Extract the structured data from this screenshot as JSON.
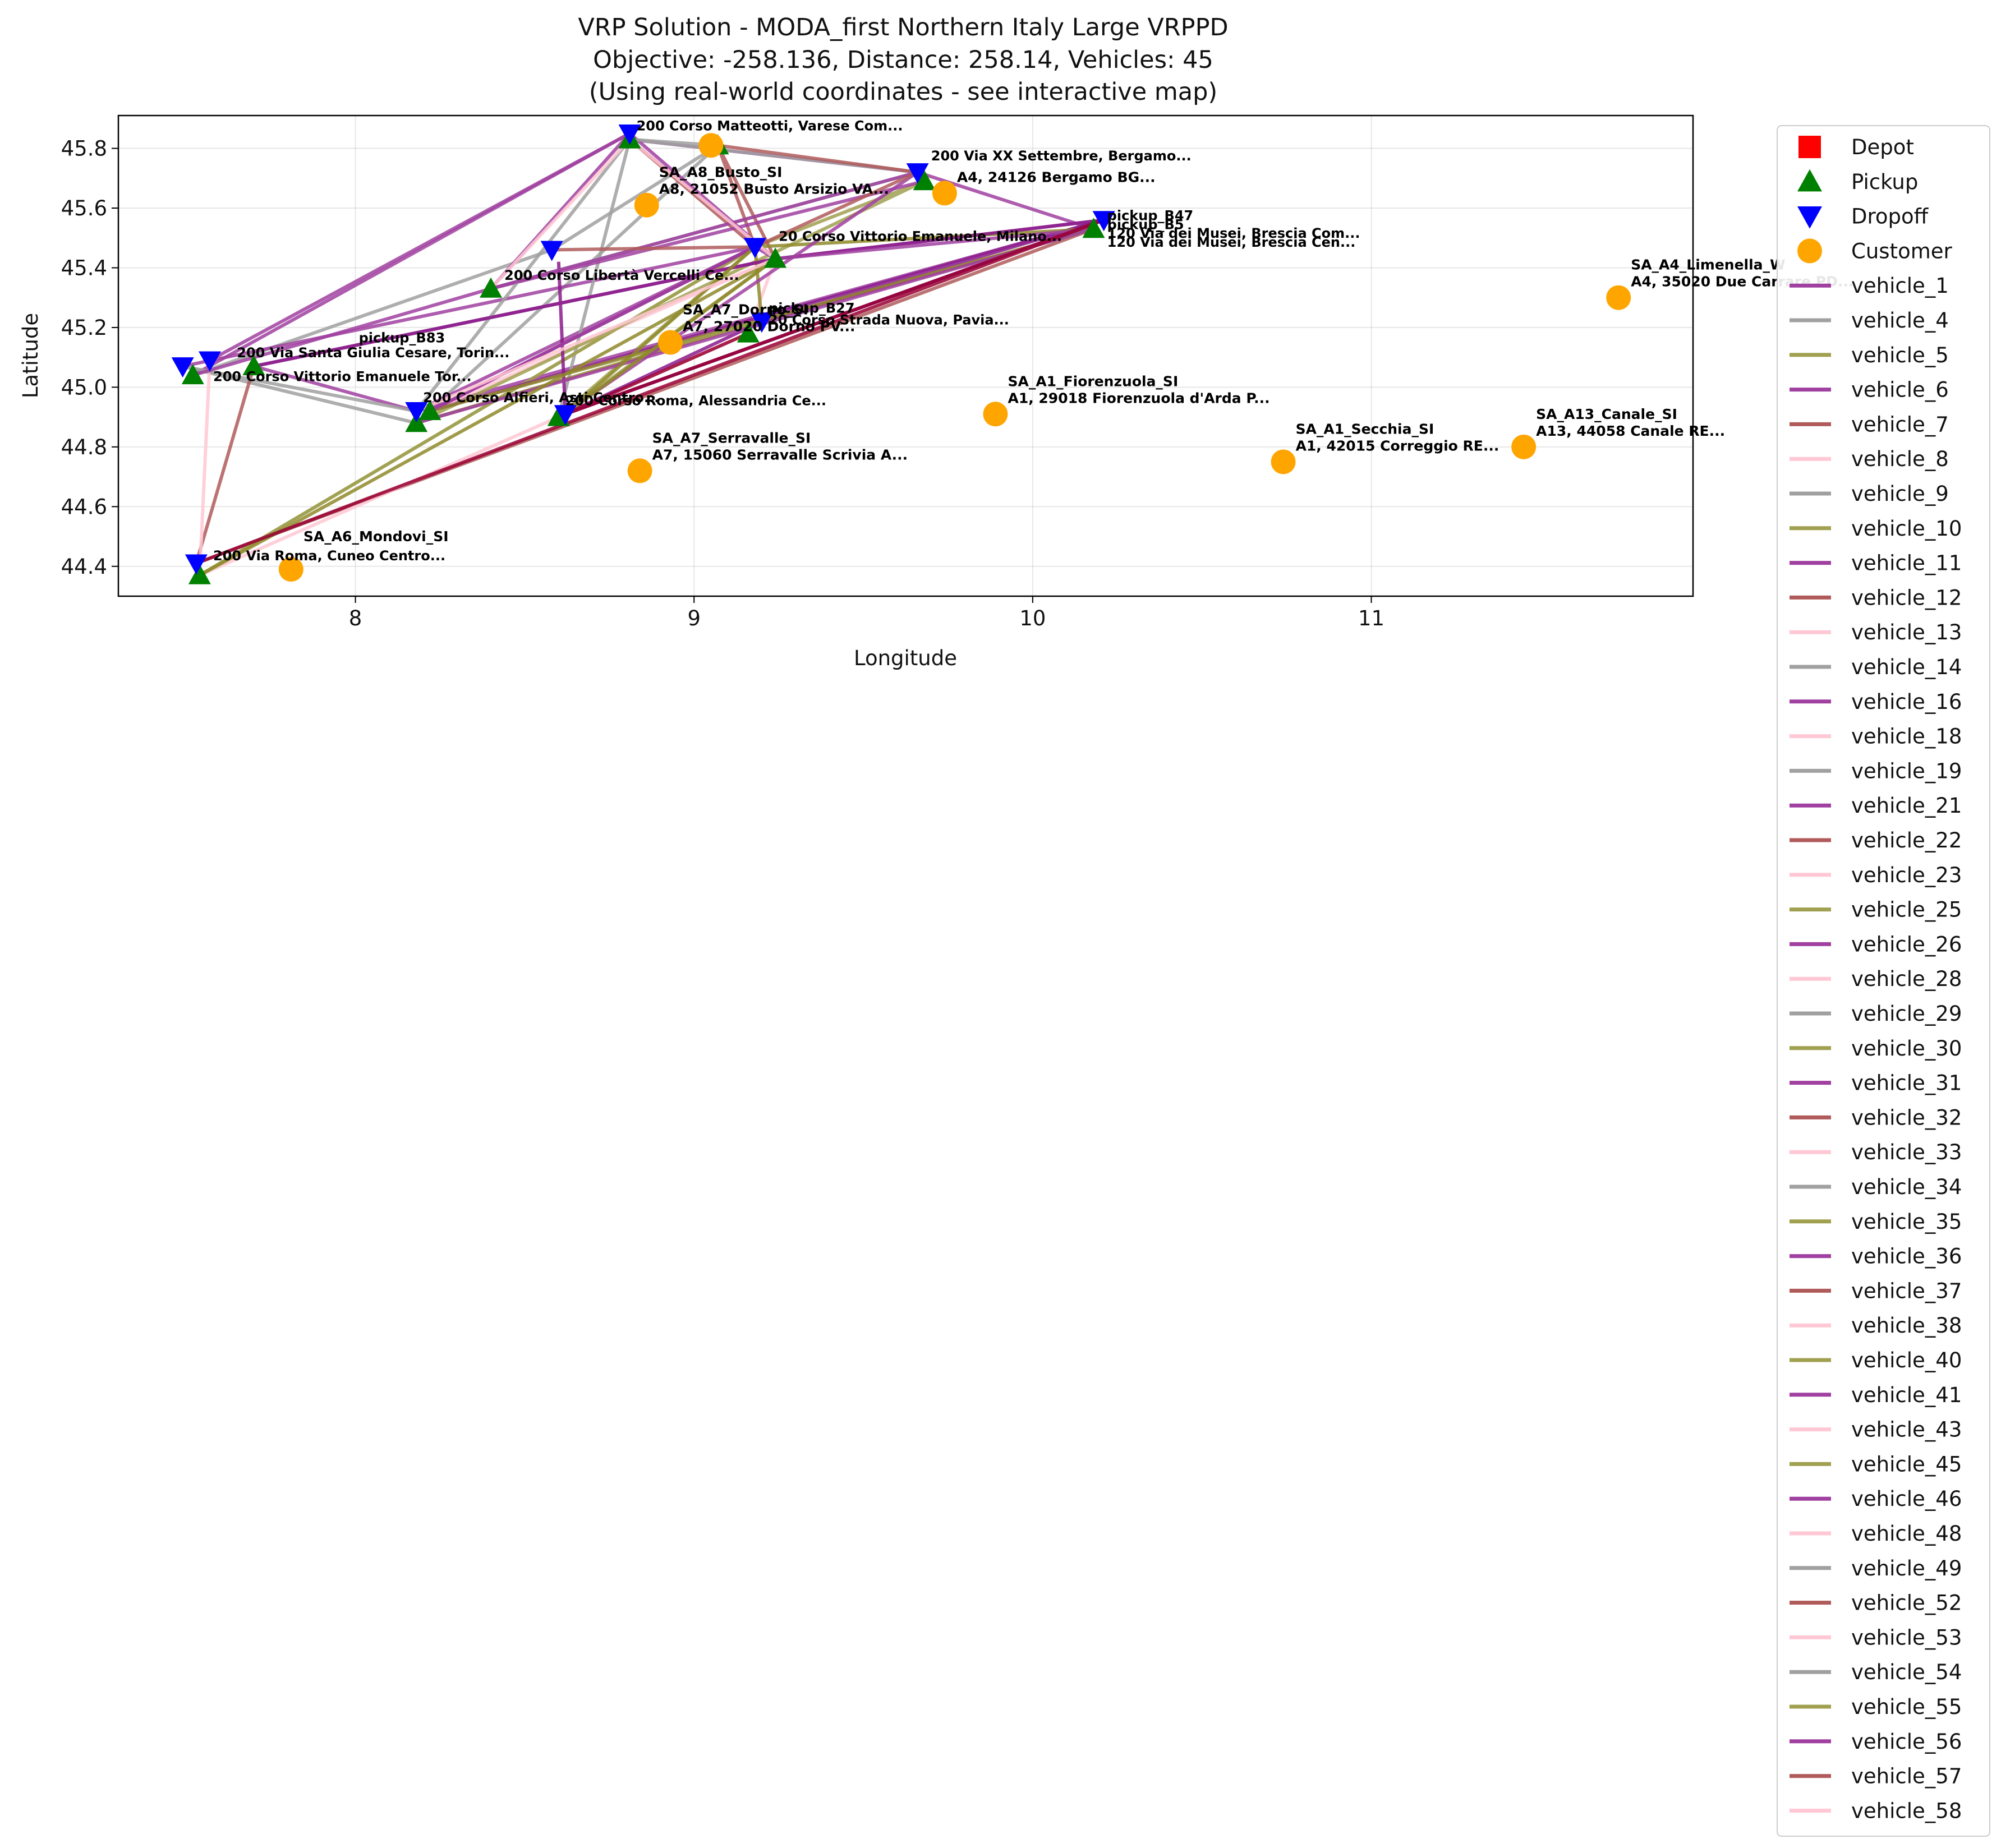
{
  "chart_data": {
    "type": "scatter",
    "title": [
      "VRP Solution - MODA_first Northern Italy Large VRPPD",
      "Objective: -258.136, Distance: 258.14, Vehicles: 45",
      "(Using real-world coordinates - see interactive map)"
    ],
    "xlabel": "Longitude",
    "ylabel": "Latitude",
    "xlim": [
      7.3,
      11.95
    ],
    "ylim": [
      44.3,
      45.91
    ],
    "xticks": [
      8,
      9,
      10,
      11
    ],
    "yticks": [
      44.4,
      44.6,
      44.8,
      45.0,
      45.2,
      45.4,
      45.6,
      45.8
    ],
    "grid": true,
    "legend_position": "outside-right",
    "colors": {
      "pickup": "#008000",
      "dropoff": "#0000ff",
      "customer": "#ffa500",
      "depot": "#ff0000",
      "olive": "#999933",
      "purple": "#992299",
      "gray": "#999999",
      "brown": "#aa4444",
      "pink": "#ffc0cb",
      "crimson": "#990033"
    },
    "legend": [
      {
        "label": "Depot",
        "kind": "square",
        "color": "#ff0000"
      },
      {
        "label": "Pickup",
        "kind": "triangle-up",
        "color": "#008000"
      },
      {
        "label": "Dropoff",
        "kind": "triangle-down",
        "color": "#0000ff"
      },
      {
        "label": "Customer",
        "kind": "circle",
        "color": "#ffa500"
      },
      {
        "label": "vehicle_1",
        "kind": "line",
        "color": "#a040a0"
      },
      {
        "label": "vehicle_4",
        "kind": "line",
        "color": "#a0a0a0"
      },
      {
        "label": "vehicle_5",
        "kind": "line",
        "color": "#a0a050"
      },
      {
        "label": "vehicle_6",
        "kind": "line",
        "color": "#a040a0"
      },
      {
        "label": "vehicle_7",
        "kind": "line",
        "color": "#b05a5a"
      },
      {
        "label": "vehicle_8",
        "kind": "line",
        "color": "#ffc8d4"
      },
      {
        "label": "vehicle_9",
        "kind": "line",
        "color": "#a0a0a0"
      },
      {
        "label": "vehicle_10",
        "kind": "line",
        "color": "#a0a050"
      },
      {
        "label": "vehicle_11",
        "kind": "line",
        "color": "#a040a0"
      },
      {
        "label": "vehicle_12",
        "kind": "line",
        "color": "#b05a5a"
      },
      {
        "label": "vehicle_13",
        "kind": "line",
        "color": "#ffc8d4"
      },
      {
        "label": "vehicle_14",
        "kind": "line",
        "color": "#a0a0a0"
      },
      {
        "label": "vehicle_16",
        "kind": "line",
        "color": "#a040a0"
      },
      {
        "label": "vehicle_18",
        "kind": "line",
        "color": "#ffc8d4"
      },
      {
        "label": "vehicle_19",
        "kind": "line",
        "color": "#a0a0a0"
      },
      {
        "label": "vehicle_21",
        "kind": "line",
        "color": "#a040a0"
      },
      {
        "label": "vehicle_22",
        "kind": "line",
        "color": "#b05a5a"
      },
      {
        "label": "vehicle_23",
        "kind": "line",
        "color": "#ffc8d4"
      },
      {
        "label": "vehicle_25",
        "kind": "line",
        "color": "#a0a050"
      },
      {
        "label": "vehicle_26",
        "kind": "line",
        "color": "#a040a0"
      },
      {
        "label": "vehicle_28",
        "kind": "line",
        "color": "#ffc8d4"
      },
      {
        "label": "vehicle_29",
        "kind": "line",
        "color": "#a0a0a0"
      },
      {
        "label": "vehicle_30",
        "kind": "line",
        "color": "#a0a050"
      },
      {
        "label": "vehicle_31",
        "kind": "line",
        "color": "#a040a0"
      },
      {
        "label": "vehicle_32",
        "kind": "line",
        "color": "#b05a5a"
      },
      {
        "label": "vehicle_33",
        "kind": "line",
        "color": "#ffc8d4"
      },
      {
        "label": "vehicle_34",
        "kind": "line",
        "color": "#a0a0a0"
      },
      {
        "label": "vehicle_35",
        "kind": "line",
        "color": "#a0a050"
      },
      {
        "label": "vehicle_36",
        "kind": "line",
        "color": "#a040a0"
      },
      {
        "label": "vehicle_37",
        "kind": "line",
        "color": "#b05a5a"
      },
      {
        "label": "vehicle_38",
        "kind": "line",
        "color": "#ffc8d4"
      },
      {
        "label": "vehicle_40",
        "kind": "line",
        "color": "#a0a050"
      },
      {
        "label": "vehicle_41",
        "kind": "line",
        "color": "#a040a0"
      },
      {
        "label": "vehicle_43",
        "kind": "line",
        "color": "#ffc8d4"
      },
      {
        "label": "vehicle_45",
        "kind": "line",
        "color": "#a0a050"
      },
      {
        "label": "vehicle_46",
        "kind": "line",
        "color": "#a040a0"
      },
      {
        "label": "vehicle_48",
        "kind": "line",
        "color": "#ffc8d4"
      },
      {
        "label": "vehicle_49",
        "kind": "line",
        "color": "#a0a0a0"
      },
      {
        "label": "vehicle_52",
        "kind": "line",
        "color": "#b05a5a"
      },
      {
        "label": "vehicle_53",
        "kind": "line",
        "color": "#ffc8d4"
      },
      {
        "label": "vehicle_54",
        "kind": "line",
        "color": "#a0a0a0"
      },
      {
        "label": "vehicle_55",
        "kind": "line",
        "color": "#a0a050"
      },
      {
        "label": "vehicle_56",
        "kind": "line",
        "color": "#a040a0"
      },
      {
        "label": "vehicle_57",
        "kind": "line",
        "color": "#b05a5a"
      },
      {
        "label": "vehicle_58",
        "kind": "line",
        "color": "#ffc8d4"
      }
    ],
    "customers": [
      {
        "lon": 11.73,
        "lat": 45.3,
        "label1": "SA_A4_Limenella_W",
        "label2": "A4, 35020 Due Carrare PD..."
      },
      {
        "lon": 11.45,
        "lat": 44.8,
        "label1": "SA_A13_Canale_SI",
        "label2": "A13, 44058 Canale RE..."
      },
      {
        "lon": 10.74,
        "lat": 44.75,
        "label1": "SA_A1_Secchia_SI",
        "label2": "A1, 42015 Correggio RE..."
      },
      {
        "lon": 9.89,
        "lat": 44.91,
        "label1": "SA_A1_Fiorenzuola_SI",
        "label2": "A1, 29018 Fiorenzuola d'Arda P..."
      },
      {
        "lon": 8.84,
        "lat": 44.72,
        "label1": "SA_A7_Serravalle_SI",
        "label2": "A7, 15060 Serravalle Scrivia A..."
      },
      {
        "lon": 7.81,
        "lat": 44.39,
        "label1": "SA_A6_Mondovi_SI",
        "label2": ""
      },
      {
        "lon": 8.86,
        "lat": 45.61,
        "label1": "SA_A8_Busto_SI",
        "label2": "A8, 21052 Busto Arsizio VA..."
      },
      {
        "lon": 8.93,
        "lat": 45.15,
        "label1": "SA_A7_Dorno_SI",
        "label2": "A7, 27020 Dorno PV..."
      },
      {
        "lon": 9.74,
        "lat": 45.65,
        "label1": "",
        "label2": "A4, 24126 Bergamo BG..."
      },
      {
        "lon": 9.05,
        "lat": 45.81,
        "label1": "",
        "label2": ""
      }
    ],
    "pickups": [
      {
        "lon": 10.18,
        "lat": 45.53
      },
      {
        "lon": 9.68,
        "lat": 45.69
      },
      {
        "lon": 9.24,
        "lat": 45.43
      },
      {
        "lon": 9.16,
        "lat": 45.18
      },
      {
        "lon": 8.81,
        "lat": 45.83
      },
      {
        "lon": 9.07,
        "lat": 45.81
      },
      {
        "lon": 8.18,
        "lat": 44.88
      },
      {
        "lon": 8.6,
        "lat": 44.9
      },
      {
        "lon": 7.52,
        "lat": 45.04
      },
      {
        "lon": 7.7,
        "lat": 45.07
      },
      {
        "lon": 7.54,
        "lat": 44.37
      },
      {
        "lon": 8.4,
        "lat": 45.33
      },
      {
        "lon": 8.22,
        "lat": 44.92
      }
    ],
    "dropoffs": [
      {
        "lon": 10.21,
        "lat": 45.56
      },
      {
        "lon": 9.66,
        "lat": 45.72
      },
      {
        "lon": 9.18,
        "lat": 45.47
      },
      {
        "lon": 9.2,
        "lat": 45.22
      },
      {
        "lon": 8.81,
        "lat": 45.85
      },
      {
        "lon": 8.18,
        "lat": 44.92
      },
      {
        "lon": 8.62,
        "lat": 44.91
      },
      {
        "lon": 7.49,
        "lat": 45.07
      },
      {
        "lon": 7.53,
        "lat": 44.41
      },
      {
        "lon": 8.58,
        "lat": 45.46
      },
      {
        "lon": 7.57,
        "lat": 45.09
      }
    ],
    "point_annotations": [
      {
        "lon": 10.22,
        "lat": 45.56,
        "text": "pickup_B47"
      },
      {
        "lon": 10.22,
        "lat": 45.53,
        "text": "pickup_B5"
      },
      {
        "lon": 10.22,
        "lat": 45.5,
        "text": "120 Via dei Musei, Brescia Com..."
      },
      {
        "lon": 10.22,
        "lat": 45.47,
        "text": "120 Via dei Musei, Brescia Cen..."
      },
      {
        "lon": 9.22,
        "lat": 45.25,
        "text": "pickup_B27"
      },
      {
        "lon": 9.22,
        "lat": 45.21,
        "text": "20 Corso Strada Nuova, Pavia..."
      },
      {
        "lon": 8.44,
        "lat": 45.36,
        "text": "200 Corso Libertà Vercelli Ce..."
      },
      {
        "lon": 8.01,
        "lat": 45.15,
        "text": "pickup_B83"
      },
      {
        "lon": 7.65,
        "lat": 45.1,
        "text": "200 Via Santa Giulia Cesare, Torin..."
      },
      {
        "lon": 7.58,
        "lat": 45.02,
        "text": "200 Corso Vittorio Emanuele Tor..."
      },
      {
        "lon": 7.58,
        "lat": 44.42,
        "text": "200 Via Roma, Cuneo Centro..."
      },
      {
        "lon": 8.62,
        "lat": 44.94,
        "text": "200 Corso Roma, Alessandria Ce..."
      },
      {
        "lon": 8.2,
        "lat": 44.95,
        "text": "200 Corso Alfieri, Asti Centro..."
      },
      {
        "lon": 9.7,
        "lat": 45.76,
        "text": "200 Via XX Settembre, Bergamo..."
      },
      {
        "lon": 8.83,
        "lat": 45.86,
        "text": "200 Corso Matteotti, Varese Com..."
      },
      {
        "lon": 9.25,
        "lat": 45.49,
        "text": "20 Corso Vittorio Emanuele, Milano..."
      }
    ],
    "routes": [
      {
        "name": "vehicle_1",
        "color": "#a040a0",
        "points": [
          [
            10.21,
            45.56
          ],
          [
            9.24,
            45.43
          ],
          [
            8.81,
            45.83
          ],
          [
            9.66,
            45.72
          ],
          [
            10.18,
            45.53
          ]
        ]
      },
      {
        "name": "vehicle_4",
        "color": "#a0a0a0",
        "points": [
          [
            7.52,
            45.04
          ],
          [
            8.58,
            45.46
          ],
          [
            9.07,
            45.81
          ],
          [
            8.18,
            44.88
          ],
          [
            7.49,
            45.07
          ]
        ]
      },
      {
        "name": "vehicle_5",
        "color": "#a0a050",
        "points": [
          [
            7.54,
            44.37
          ],
          [
            9.18,
            45.47
          ],
          [
            8.6,
            44.9
          ],
          [
            9.24,
            45.43
          ]
        ]
      },
      {
        "name": "vehicle_6",
        "color": "#a040a0",
        "points": [
          [
            7.49,
            45.07
          ],
          [
            9.18,
            45.47
          ],
          [
            8.18,
            44.92
          ],
          [
            10.21,
            45.56
          ],
          [
            8.62,
            44.91
          ]
        ]
      },
      {
        "name": "vehicle_7",
        "color": "#b05a5a",
        "points": [
          [
            7.7,
            45.07
          ],
          [
            7.53,
            44.41
          ],
          [
            10.18,
            45.53
          ],
          [
            9.2,
            45.22
          ]
        ]
      },
      {
        "name": "vehicle_8",
        "color": "#ffc8d4",
        "points": [
          [
            7.57,
            45.09
          ],
          [
            7.54,
            44.37
          ],
          [
            9.16,
            45.18
          ],
          [
            9.24,
            45.43
          ],
          [
            8.22,
            44.92
          ]
        ]
      },
      {
        "name": "vehicle_9",
        "color": "#a0a0a0",
        "points": [
          [
            8.4,
            45.33
          ],
          [
            9.66,
            45.72
          ],
          [
            8.81,
            45.83
          ],
          [
            8.6,
            44.9
          ]
        ]
      },
      {
        "name": "vehicle_10",
        "color": "#a0a050",
        "points": [
          [
            8.18,
            44.88
          ],
          [
            9.68,
            45.69
          ],
          [
            9.18,
            45.47
          ],
          [
            7.54,
            44.37
          ]
        ]
      },
      {
        "name": "vehicle_11",
        "color": "#a040a0",
        "points": [
          [
            7.52,
            45.04
          ],
          [
            8.81,
            45.85
          ],
          [
            9.24,
            45.43
          ],
          [
            7.7,
            45.07
          ],
          [
            8.18,
            44.92
          ]
        ]
      },
      {
        "name": "vehicle_16",
        "color": "#8b1a8b",
        "points": [
          [
            8.62,
            44.91
          ],
          [
            9.2,
            45.22
          ],
          [
            10.21,
            45.56
          ],
          [
            8.22,
            44.92
          ],
          [
            9.18,
            45.47
          ]
        ]
      },
      {
        "name": "vehicle_22",
        "color": "#b05a5a",
        "points": [
          [
            8.81,
            45.83
          ],
          [
            9.18,
            45.47
          ],
          [
            9.07,
            45.81
          ],
          [
            9.24,
            45.43
          ]
        ]
      },
      {
        "name": "vehicle_26",
        "color": "#a040a0",
        "points": [
          [
            7.57,
            45.09
          ],
          [
            8.81,
            45.85
          ],
          [
            8.4,
            45.33
          ],
          [
            9.68,
            45.69
          ]
        ]
      },
      {
        "name": "vehicle_30",
        "color": "#8f8a2a",
        "points": [
          [
            8.18,
            44.88
          ],
          [
            9.2,
            45.22
          ],
          [
            9.18,
            45.47
          ],
          [
            10.18,
            45.53
          ],
          [
            8.22,
            44.92
          ]
        ]
      },
      {
        "name": "vehicle_34",
        "color": "#a0a0a0",
        "points": [
          [
            7.49,
            45.07
          ],
          [
            8.18,
            44.92
          ],
          [
            8.81,
            45.83
          ],
          [
            9.07,
            45.81
          ]
        ]
      },
      {
        "name": "vehicle_36",
        "color": "#8b1a8b",
        "points": [
          [
            7.7,
            45.07
          ],
          [
            9.24,
            45.43
          ],
          [
            10.21,
            45.56
          ],
          [
            8.62,
            44.91
          ],
          [
            8.6,
            45.42
          ]
        ]
      },
      {
        "name": "vehicle_41",
        "color": "#a040a0",
        "points": [
          [
            8.6,
            44.9
          ],
          [
            9.66,
            45.72
          ],
          [
            8.4,
            45.33
          ],
          [
            7.52,
            45.04
          ]
        ]
      },
      {
        "name": "vehicle_46",
        "color": "#a040a0",
        "points": [
          [
            8.22,
            44.92
          ],
          [
            9.18,
            45.47
          ],
          [
            9.24,
            45.43
          ],
          [
            10.18,
            45.53
          ],
          [
            8.18,
            44.88
          ]
        ]
      },
      {
        "name": "vehicle_52",
        "color": "#b05a5a",
        "points": [
          [
            9.07,
            45.81
          ],
          [
            9.66,
            45.72
          ],
          [
            9.18,
            45.47
          ],
          [
            8.58,
            45.46
          ]
        ]
      },
      {
        "name": "vehicle_55",
        "color": "#8f8a2a",
        "points": [
          [
            7.54,
            44.37
          ],
          [
            9.24,
            45.43
          ],
          [
            8.62,
            44.91
          ],
          [
            9.18,
            45.47
          ]
        ]
      },
      {
        "name": "vehicle_57",
        "color": "#990033",
        "points": [
          [
            7.53,
            44.41
          ],
          [
            10.21,
            45.56
          ],
          [
            8.62,
            44.91
          ],
          [
            9.16,
            45.18
          ]
        ]
      },
      {
        "name": "vehicle_58",
        "color": "#ffc8d4",
        "points": [
          [
            8.18,
            44.92
          ],
          [
            9.24,
            45.43
          ],
          [
            8.81,
            45.83
          ],
          [
            8.4,
            45.33
          ]
        ]
      }
    ]
  }
}
